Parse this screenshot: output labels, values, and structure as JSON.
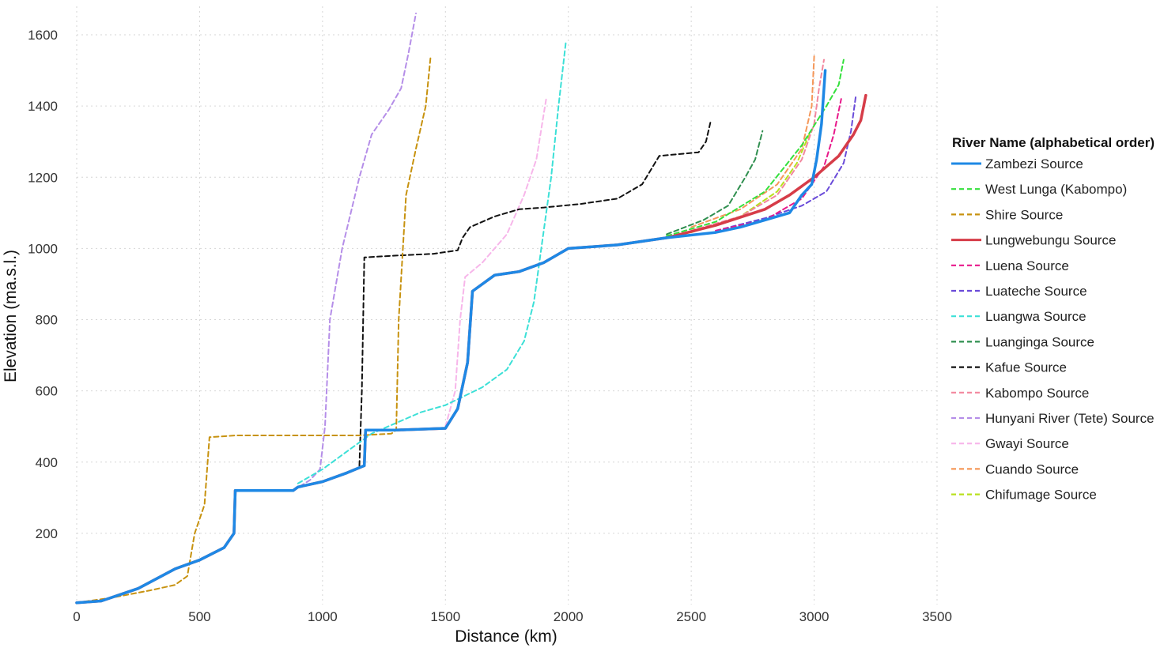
{
  "chart_data": {
    "type": "line",
    "xlabel": "Distance (km)",
    "ylabel": "Elevation (ma.s.l.)",
    "xlim": [
      0,
      3500
    ],
    "ylim": [
      0,
      1680
    ],
    "x_ticks": [
      0,
      500,
      1000,
      1500,
      2000,
      2500,
      3000,
      3500
    ],
    "y_ticks": [
      200,
      400,
      600,
      800,
      1000,
      1200,
      1400,
      1600
    ],
    "grid": true,
    "legend_title": "River Name (alphabetical order)",
    "legend_position": "right",
    "series": [
      {
        "name": "Zambezi Source",
        "color": "#1e88e5",
        "dash": "solid",
        "width": 3.5,
        "points": [
          [
            0,
            5
          ],
          [
            100,
            10
          ],
          [
            250,
            45
          ],
          [
            400,
            100
          ],
          [
            500,
            125
          ],
          [
            600,
            160
          ],
          [
            640,
            200
          ],
          [
            645,
            320
          ],
          [
            700,
            320
          ],
          [
            880,
            320
          ],
          [
            900,
            330
          ],
          [
            1000,
            345
          ],
          [
            1100,
            370
          ],
          [
            1170,
            390
          ],
          [
            1175,
            490
          ],
          [
            1300,
            490
          ],
          [
            1500,
            495
          ],
          [
            1550,
            550
          ],
          [
            1590,
            680
          ],
          [
            1610,
            880
          ],
          [
            1700,
            925
          ],
          [
            1800,
            935
          ],
          [
            1900,
            960
          ],
          [
            2000,
            1000
          ],
          [
            2200,
            1010
          ],
          [
            2400,
            1030
          ],
          [
            2600,
            1045
          ],
          [
            2700,
            1060
          ],
          [
            2800,
            1080
          ],
          [
            2900,
            1100
          ],
          [
            2950,
            1150
          ],
          [
            2990,
            1180
          ],
          [
            3010,
            1250
          ],
          [
            3030,
            1350
          ],
          [
            3045,
            1500
          ]
        ]
      },
      {
        "name": "West Lunga (Kabompo)",
        "color": "#34e03c",
        "dash": "dashed",
        "width": 2,
        "points": [
          [
            2400,
            1035
          ],
          [
            2600,
            1075
          ],
          [
            2800,
            1160
          ],
          [
            2950,
            1290
          ],
          [
            3050,
            1400
          ],
          [
            3100,
            1460
          ],
          [
            3120,
            1530
          ]
        ]
      },
      {
        "name": "Shire Source",
        "color": "#c7920f",
        "dash": "dashed",
        "width": 2,
        "points": [
          [
            0,
            5
          ],
          [
            150,
            20
          ],
          [
            300,
            40
          ],
          [
            400,
            55
          ],
          [
            450,
            80
          ],
          [
            480,
            200
          ],
          [
            520,
            280
          ],
          [
            540,
            470
          ],
          [
            650,
            475
          ],
          [
            1000,
            475
          ],
          [
            1150,
            475
          ],
          [
            1280,
            480
          ],
          [
            1300,
            490
          ],
          [
            1310,
            800
          ],
          [
            1340,
            1150
          ],
          [
            1380,
            1280
          ],
          [
            1420,
            1400
          ],
          [
            1440,
            1540
          ]
        ]
      },
      {
        "name": "Lungwebungu Source",
        "color": "#d63c48",
        "dash": "solid",
        "width": 3.5,
        "points": [
          [
            0,
            5
          ],
          [
            100,
            10
          ],
          [
            250,
            45
          ],
          [
            400,
            100
          ],
          [
            500,
            125
          ],
          [
            600,
            160
          ],
          [
            640,
            200
          ],
          [
            645,
            320
          ],
          [
            700,
            320
          ],
          [
            880,
            320
          ],
          [
            900,
            330
          ],
          [
            1000,
            345
          ],
          [
            1100,
            370
          ],
          [
            1170,
            390
          ],
          [
            1175,
            490
          ],
          [
            1300,
            490
          ],
          [
            1500,
            495
          ],
          [
            1550,
            550
          ],
          [
            1590,
            680
          ],
          [
            1610,
            880
          ],
          [
            1700,
            925
          ],
          [
            1800,
            935
          ],
          [
            1900,
            960
          ],
          [
            2000,
            1000
          ],
          [
            2200,
            1010
          ],
          [
            2400,
            1030
          ],
          [
            2600,
            1065
          ],
          [
            2800,
            1110
          ],
          [
            2900,
            1150
          ],
          [
            3000,
            1200
          ],
          [
            3100,
            1260
          ],
          [
            3160,
            1320
          ],
          [
            3190,
            1360
          ],
          [
            3210,
            1430
          ]
        ]
      },
      {
        "name": "Luena Source",
        "color": "#e8198b",
        "dash": "dashed",
        "width": 2,
        "points": [
          [
            2600,
            1050
          ],
          [
            2800,
            1080
          ],
          [
            2950,
            1140
          ],
          [
            3040,
            1230
          ],
          [
            3080,
            1320
          ],
          [
            3110,
            1420
          ]
        ]
      },
      {
        "name": "Luateche Source",
        "color": "#6a4bd9",
        "dash": "dashed",
        "width": 2,
        "points": [
          [
            2600,
            1050
          ],
          [
            2800,
            1085
          ],
          [
            2950,
            1120
          ],
          [
            3050,
            1160
          ],
          [
            3120,
            1240
          ],
          [
            3150,
            1330
          ],
          [
            3170,
            1430
          ]
        ]
      },
      {
        "name": "Luangwa Source",
        "color": "#3ce0d7",
        "dash": "dashed",
        "width": 2,
        "points": [
          [
            900,
            340
          ],
          [
            1000,
            380
          ],
          [
            1100,
            430
          ],
          [
            1200,
            480
          ],
          [
            1300,
            510
          ],
          [
            1400,
            540
          ],
          [
            1500,
            560
          ],
          [
            1650,
            610
          ],
          [
            1750,
            660
          ],
          [
            1820,
            740
          ],
          [
            1860,
            850
          ],
          [
            1890,
            1000
          ],
          [
            1930,
            1200
          ],
          [
            1960,
            1400
          ],
          [
            1990,
            1580
          ]
        ]
      },
      {
        "name": "Luanginga Source",
        "color": "#2f8f4f",
        "dash": "dashed",
        "width": 2,
        "points": [
          [
            2400,
            1040
          ],
          [
            2550,
            1080
          ],
          [
            2650,
            1120
          ],
          [
            2720,
            1200
          ],
          [
            2760,
            1250
          ],
          [
            2790,
            1330
          ]
        ]
      },
      {
        "name": "Kafue Source",
        "color": "#111111",
        "dash": "dashed",
        "width": 2,
        "points": [
          [
            1150,
            390
          ],
          [
            1160,
            600
          ],
          [
            1170,
            975
          ],
          [
            1300,
            980
          ],
          [
            1450,
            985
          ],
          [
            1550,
            995
          ],
          [
            1570,
            1030
          ],
          [
            1600,
            1060
          ],
          [
            1700,
            1090
          ],
          [
            1800,
            1110
          ],
          [
            1900,
            1115
          ],
          [
            2050,
            1125
          ],
          [
            2200,
            1140
          ],
          [
            2300,
            1180
          ],
          [
            2370,
            1260
          ],
          [
            2450,
            1265
          ],
          [
            2530,
            1270
          ],
          [
            2560,
            1300
          ],
          [
            2580,
            1360
          ]
        ]
      },
      {
        "name": "Kabompo Source",
        "color": "#f2879e",
        "dash": "dashed",
        "width": 2,
        "points": [
          [
            2500,
            1050
          ],
          [
            2700,
            1090
          ],
          [
            2850,
            1150
          ],
          [
            2950,
            1250
          ],
          [
            3000,
            1350
          ],
          [
            3020,
            1450
          ],
          [
            3040,
            1530
          ]
        ]
      },
      {
        "name": "Hunyani River (Tete) Source",
        "color": "#b58ee8",
        "dash": "dashed",
        "width": 2,
        "points": [
          [
            880,
            320
          ],
          [
            950,
            350
          ],
          [
            990,
            380
          ],
          [
            1010,
            500
          ],
          [
            1030,
            800
          ],
          [
            1080,
            1000
          ],
          [
            1150,
            1200
          ],
          [
            1200,
            1320
          ],
          [
            1270,
            1390
          ],
          [
            1320,
            1450
          ],
          [
            1350,
            1550
          ],
          [
            1380,
            1660
          ]
        ]
      },
      {
        "name": "Gwayi Source",
        "color": "#f7b6ea",
        "dash": "dashed",
        "width": 2,
        "points": [
          [
            1500,
            500
          ],
          [
            1540,
            600
          ],
          [
            1560,
            800
          ],
          [
            1580,
            920
          ],
          [
            1650,
            960
          ],
          [
            1750,
            1040
          ],
          [
            1820,
            1150
          ],
          [
            1870,
            1250
          ],
          [
            1910,
            1420
          ]
        ]
      },
      {
        "name": "Cuando Source",
        "color": "#f5985a",
        "dash": "dashed",
        "width": 2,
        "points": [
          [
            2500,
            1060
          ],
          [
            2700,
            1110
          ],
          [
            2850,
            1180
          ],
          [
            2950,
            1280
          ],
          [
            2990,
            1400
          ],
          [
            3000,
            1540
          ]
        ]
      },
      {
        "name": "Chifumage Source",
        "color": "#b9e01e",
        "dash": "dashed",
        "width": 2,
        "points": [
          [
            2500,
            1045
          ],
          [
            2700,
            1090
          ],
          [
            2850,
            1160
          ],
          [
            2930,
            1240
          ],
          [
            2980,
            1320
          ]
        ]
      }
    ]
  }
}
